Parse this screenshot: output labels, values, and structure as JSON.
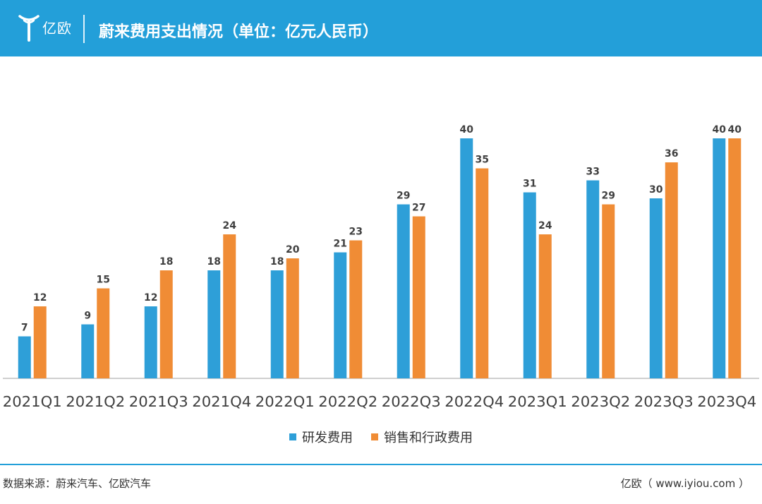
{
  "header": {
    "logo_text": "亿欧",
    "title": "蔚来费用支出情况（单位：亿元人民币）"
  },
  "colors": {
    "header_bg": "#239fd9",
    "series1": "#2e9fd8",
    "series2": "#f08c35"
  },
  "chart_data": {
    "type": "bar",
    "title": "蔚来费用支出情况（单位：亿元人民币）",
    "categories": [
      "2021Q1",
      "2021Q2",
      "2021Q3",
      "2021Q4",
      "2022Q1",
      "2022Q2",
      "2022Q3",
      "2022Q4",
      "2023Q1",
      "2023Q2",
      "2023Q3",
      "2023Q4"
    ],
    "series": [
      {
        "name": "研发费用",
        "color": "#2e9fd8",
        "values": [
          7,
          9,
          12,
          18,
          18,
          21,
          29,
          40,
          31,
          33,
          30,
          40
        ]
      },
      {
        "name": "销售和行政费用",
        "color": "#f08c35",
        "values": [
          12,
          15,
          18,
          24,
          20,
          23,
          27,
          35,
          24,
          29,
          36,
          40
        ]
      }
    ],
    "ylim": [
      0,
      40
    ],
    "xlabel": "",
    "ylabel": "",
    "grid": false,
    "legend": "bottom-center"
  },
  "footer": {
    "source": "数据来源：蔚来汽车、亿欧汽车",
    "credit": "亿欧（ www.iyiou.com ）"
  }
}
